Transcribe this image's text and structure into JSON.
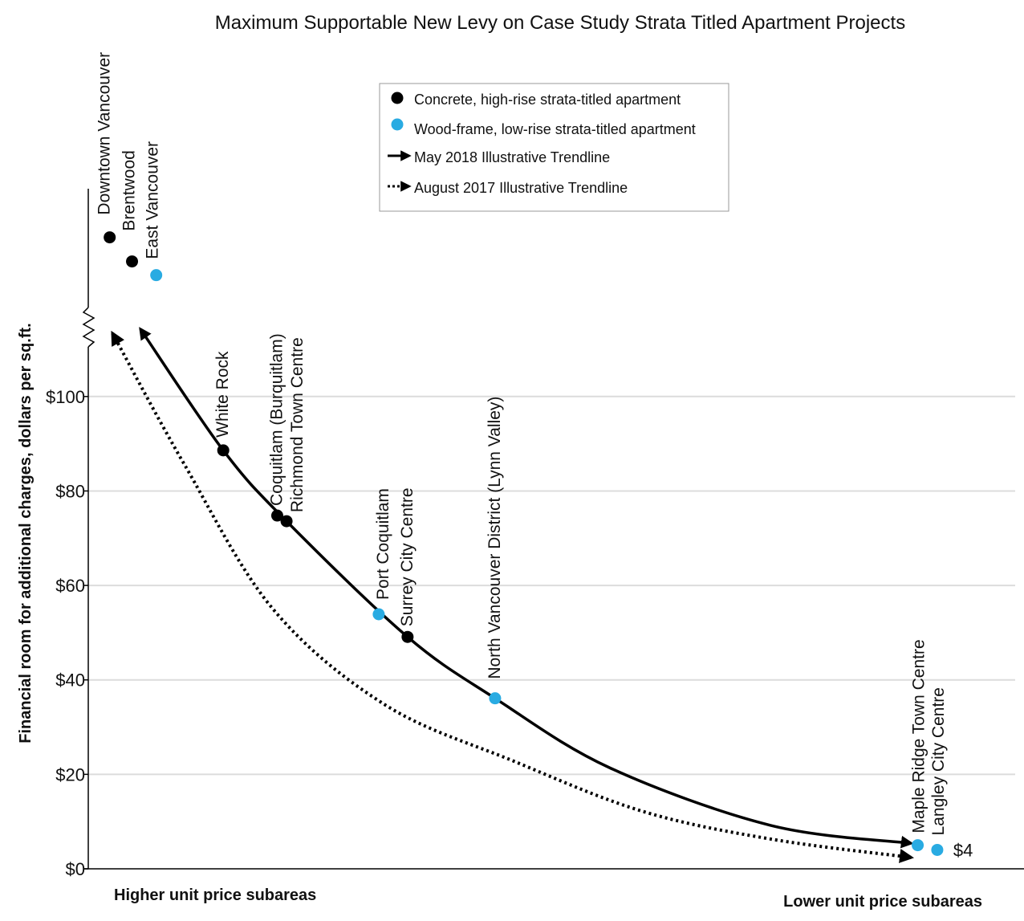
{
  "chart_data": {
    "type": "scatter",
    "title": "Maximum Supportable New Levy on Case Study Strata Titled Apartment Projects",
    "y_label": "Financial room for additional charges, dollars per sq.ft.",
    "x_label_left": "Higher unit price subareas",
    "x_label_right": "Lower unit price subareas",
    "xlim": [
      0,
      100
    ],
    "ylim": [
      0,
      144
    ],
    "yticks": [
      {
        "value": 0,
        "label": "$0"
      },
      {
        "value": 20,
        "label": "$20"
      },
      {
        "value": 40,
        "label": "$40"
      },
      {
        "value": 60,
        "label": "$60"
      },
      {
        "value": 80,
        "label": "$80"
      },
      {
        "value": 100,
        "label": "$100"
      }
    ],
    "grid": true,
    "series": [
      {
        "name": "Concrete, high-rise strata-titled apartment",
        "color": "#000000",
        "labels": [
          "Downtown Vancouver",
          "Brentwood",
          "White Rock",
          "Coquitlam (Burquitlam)",
          "Richmond Town Centre",
          "Surrey City Centre"
        ],
        "x": [
          2.3,
          4.7,
          14.5,
          20.3,
          21.3,
          34.3
        ],
        "values": [
          133.7,
          128.6,
          88.6,
          74.8,
          73.6,
          49.1
        ]
      },
      {
        "name": "Wood-frame, low-rise strata-titled apartment",
        "color": "#29abe2",
        "labels": [
          "East Vancouver",
          "Port Coquitlam",
          "North Vancouver District (Lynn Valley)",
          "Maple Ridge Town Centre",
          "Langley City Centre"
        ],
        "x": [
          7.3,
          31.2,
          43.7,
          89.1,
          91.2
        ],
        "values": [
          125.7,
          53.9,
          36.1,
          5,
          4
        ],
        "value_labels": [
          null,
          null,
          null,
          null,
          "$4"
        ]
      }
    ],
    "trendlines": [
      {
        "name": "May 2018 Illustrative Trendline",
        "style": "solid",
        "color": "#000000",
        "x": [
          5.6,
          14.5,
          21.3,
          34.3,
          43.7,
          56.0,
          73.3,
          88.4
        ],
        "values": [
          114.3,
          88.6,
          73.6,
          49.1,
          36.1,
          21.4,
          9.2,
          5.4
        ]
      },
      {
        "name": "August 2017 Illustrative Trendline",
        "style": "dotted",
        "color": "#000000",
        "x": [
          2.6,
          10.3,
          19.8,
          31.9,
          45.7,
          59.5,
          73.3,
          88.4
        ],
        "values": [
          113.4,
          85.7,
          55.1,
          34.7,
          22.8,
          12.2,
          6.3,
          2.4
        ]
      }
    ]
  }
}
